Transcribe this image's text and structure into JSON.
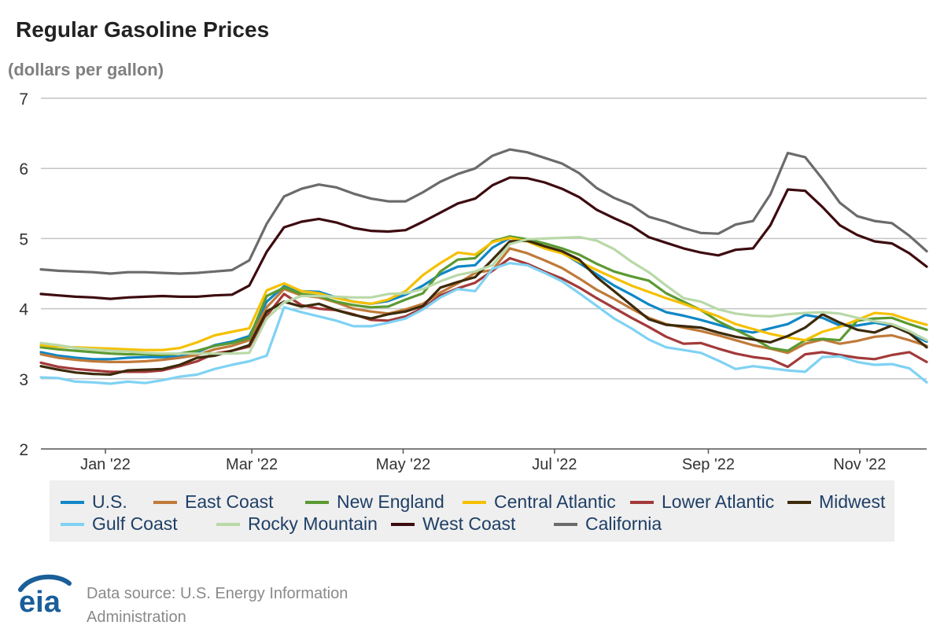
{
  "header": {
    "title": "Regular Gasoline Prices",
    "subtitle": "(dollars per gallon)"
  },
  "footer": {
    "source_line1": "Data source: U.S. Energy Information",
    "source_line2": "Administration",
    "logo_text": "eia",
    "logo_color": "#1a5f99"
  },
  "chart_data": {
    "type": "line",
    "title": "Regular Gasoline Prices",
    "ylabel": "(dollars per gallon)",
    "ylim": [
      2,
      7
    ],
    "yticks": [
      2,
      3,
      4,
      5,
      6,
      7
    ],
    "xlim": [
      "2021-12-06",
      "2022-11-28"
    ],
    "xticks": [
      {
        "label": "Jan '22",
        "date": "2022-01-01"
      },
      {
        "label": "Mar '22",
        "date": "2022-03-01"
      },
      {
        "label": "May '22",
        "date": "2022-05-01"
      },
      {
        "label": "Jul '22",
        "date": "2022-07-01"
      },
      {
        "label": "Sep '22",
        "date": "2022-09-01"
      },
      {
        "label": "Nov '22",
        "date": "2022-11-01"
      }
    ],
    "grid": true,
    "legend_position": "bottom",
    "x": [
      "2021-12-06",
      "2021-12-13",
      "2021-12-20",
      "2021-12-27",
      "2022-01-03",
      "2022-01-10",
      "2022-01-17",
      "2022-01-24",
      "2022-01-31",
      "2022-02-07",
      "2022-02-14",
      "2022-02-21",
      "2022-02-28",
      "2022-03-07",
      "2022-03-14",
      "2022-03-21",
      "2022-03-28",
      "2022-04-04",
      "2022-04-11",
      "2022-04-18",
      "2022-04-25",
      "2022-05-02",
      "2022-05-09",
      "2022-05-16",
      "2022-05-23",
      "2022-05-30",
      "2022-06-06",
      "2022-06-13",
      "2022-06-20",
      "2022-06-27",
      "2022-07-04",
      "2022-07-11",
      "2022-07-18",
      "2022-07-25",
      "2022-08-01",
      "2022-08-08",
      "2022-08-15",
      "2022-08-22",
      "2022-08-29",
      "2022-09-05",
      "2022-09-12",
      "2022-09-19",
      "2022-09-26",
      "2022-10-03",
      "2022-10-10",
      "2022-10-17",
      "2022-10-24",
      "2022-10-31",
      "2022-11-07",
      "2022-11-14",
      "2022-11-21",
      "2022-11-28"
    ],
    "series": [
      {
        "name": "U.S.",
        "color": "#0f87c6",
        "values": [
          3.38,
          3.33,
          3.3,
          3.28,
          3.28,
          3.3,
          3.31,
          3.31,
          3.32,
          3.38,
          3.48,
          3.53,
          3.61,
          4.1,
          4.32,
          4.25,
          4.24,
          4.16,
          4.1,
          4.07,
          4.11,
          4.2,
          4.33,
          4.49,
          4.6,
          4.62,
          4.87,
          5.01,
          4.98,
          4.88,
          4.8,
          4.65,
          4.49,
          4.33,
          4.2,
          4.06,
          3.95,
          3.9,
          3.84,
          3.77,
          3.7,
          3.66,
          3.72,
          3.78,
          3.91,
          3.87,
          3.76,
          3.76,
          3.8,
          3.76,
          3.65,
          3.53
        ]
      },
      {
        "name": "East Coast",
        "color": "#c07a3a",
        "values": [
          3.35,
          3.3,
          3.27,
          3.25,
          3.24,
          3.24,
          3.25,
          3.27,
          3.3,
          3.34,
          3.42,
          3.47,
          3.55,
          4.02,
          4.28,
          4.19,
          4.16,
          4.09,
          4.0,
          3.96,
          3.93,
          3.99,
          4.07,
          4.23,
          4.36,
          4.51,
          4.55,
          4.86,
          4.79,
          4.69,
          4.58,
          4.43,
          4.27,
          4.14,
          4.0,
          3.87,
          3.78,
          3.73,
          3.68,
          3.62,
          3.55,
          3.48,
          3.43,
          3.37,
          3.5,
          3.56,
          3.5,
          3.54,
          3.6,
          3.62,
          3.55,
          3.47
        ]
      },
      {
        "name": "New England",
        "color": "#5b9a32",
        "values": [
          3.45,
          3.42,
          3.4,
          3.38,
          3.36,
          3.35,
          3.35,
          3.34,
          3.36,
          3.4,
          3.47,
          3.51,
          3.58,
          4.18,
          4.3,
          4.21,
          4.18,
          4.1,
          4.05,
          4.02,
          4.03,
          4.13,
          4.22,
          4.53,
          4.7,
          4.72,
          4.96,
          5.03,
          4.99,
          4.93,
          4.86,
          4.77,
          4.64,
          4.53,
          4.46,
          4.4,
          4.22,
          4.1,
          3.98,
          3.82,
          3.7,
          3.58,
          3.44,
          3.4,
          3.55,
          3.57,
          3.55,
          3.83,
          3.86,
          3.87,
          3.78,
          3.7
        ]
      },
      {
        "name": "Central Atlantic",
        "color": "#f5c000",
        "values": [
          3.48,
          3.46,
          3.45,
          3.44,
          3.43,
          3.42,
          3.41,
          3.41,
          3.44,
          3.52,
          3.62,
          3.67,
          3.72,
          4.26,
          4.36,
          4.25,
          4.22,
          4.15,
          4.1,
          4.07,
          4.13,
          4.25,
          4.48,
          4.65,
          4.8,
          4.77,
          4.95,
          5.01,
          4.96,
          4.86,
          4.79,
          4.67,
          4.55,
          4.44,
          4.33,
          4.24,
          4.15,
          4.07,
          3.98,
          3.89,
          3.78,
          3.71,
          3.64,
          3.59,
          3.55,
          3.67,
          3.74,
          3.84,
          3.94,
          3.92,
          3.84,
          3.77
        ]
      },
      {
        "name": "Lower Atlantic",
        "color": "#a33a3a",
        "values": [
          3.23,
          3.17,
          3.14,
          3.12,
          3.1,
          3.1,
          3.1,
          3.12,
          3.18,
          3.25,
          3.36,
          3.4,
          3.46,
          3.9,
          4.21,
          4.05,
          4.0,
          3.98,
          3.92,
          3.84,
          3.83,
          3.89,
          4.01,
          4.19,
          4.29,
          4.37,
          4.54,
          4.72,
          4.64,
          4.53,
          4.43,
          4.3,
          4.15,
          4.01,
          3.87,
          3.74,
          3.6,
          3.5,
          3.51,
          3.43,
          3.36,
          3.31,
          3.28,
          3.17,
          3.35,
          3.38,
          3.34,
          3.3,
          3.28,
          3.34,
          3.38,
          3.24
        ]
      },
      {
        "name": "Midwest",
        "color": "#3c2a0a",
        "values": [
          3.18,
          3.13,
          3.09,
          3.07,
          3.06,
          3.12,
          3.13,
          3.14,
          3.2,
          3.3,
          3.33,
          3.4,
          3.48,
          3.96,
          4.1,
          4.03,
          4.07,
          3.98,
          3.91,
          3.86,
          3.92,
          3.96,
          4.04,
          4.3,
          4.38,
          4.45,
          4.7,
          4.96,
          4.97,
          4.89,
          4.82,
          4.7,
          4.45,
          4.25,
          4.05,
          3.85,
          3.77,
          3.75,
          3.73,
          3.66,
          3.6,
          3.56,
          3.52,
          3.61,
          3.73,
          3.92,
          3.8,
          3.7,
          3.66,
          3.76,
          3.65,
          3.45
        ]
      },
      {
        "name": "Gulf Coast",
        "color": "#7fd2f3",
        "values": [
          3.02,
          3.01,
          2.96,
          2.95,
          2.93,
          2.96,
          2.94,
          2.98,
          3.03,
          3.06,
          3.14,
          3.2,
          3.25,
          3.33,
          4.02,
          3.95,
          3.89,
          3.83,
          3.75,
          3.75,
          3.8,
          3.86,
          3.99,
          4.16,
          4.28,
          4.25,
          4.57,
          4.65,
          4.62,
          4.51,
          4.39,
          4.22,
          4.04,
          3.86,
          3.72,
          3.56,
          3.45,
          3.41,
          3.37,
          3.26,
          3.14,
          3.18,
          3.15,
          3.12,
          3.1,
          3.31,
          3.32,
          3.24,
          3.2,
          3.21,
          3.15,
          2.95
        ]
      },
      {
        "name": "Rocky Mountain",
        "color": "#b9d9a8",
        "values": [
          3.51,
          3.48,
          3.44,
          3.42,
          3.4,
          3.39,
          3.37,
          3.36,
          3.36,
          3.36,
          3.36,
          3.36,
          3.37,
          3.86,
          4.09,
          4.18,
          4.18,
          4.17,
          4.16,
          4.16,
          4.21,
          4.22,
          4.28,
          4.39,
          4.48,
          4.53,
          4.62,
          4.92,
          4.99,
          5.0,
          5.01,
          5.02,
          4.97,
          4.85,
          4.67,
          4.52,
          4.33,
          4.15,
          4.1,
          3.99,
          3.93,
          3.9,
          3.89,
          3.92,
          3.94,
          3.95,
          3.93,
          3.87,
          3.82,
          3.78,
          3.68,
          3.55
        ]
      },
      {
        "name": "West Coast",
        "color": "#3d0b0f",
        "values": [
          4.21,
          4.19,
          4.17,
          4.16,
          4.14,
          4.16,
          4.17,
          4.18,
          4.17,
          4.17,
          4.19,
          4.2,
          4.33,
          4.81,
          5.16,
          5.24,
          5.28,
          5.23,
          5.15,
          5.11,
          5.1,
          5.12,
          5.24,
          5.37,
          5.5,
          5.57,
          5.76,
          5.87,
          5.86,
          5.8,
          5.71,
          5.59,
          5.41,
          5.29,
          5.18,
          5.02,
          4.94,
          4.86,
          4.8,
          4.76,
          4.84,
          4.86,
          5.19,
          5.7,
          5.68,
          5.45,
          5.19,
          5.05,
          4.96,
          4.93,
          4.79,
          4.6
        ]
      },
      {
        "name": "California",
        "color": "#6b6b6b",
        "values": [
          4.56,
          4.54,
          4.53,
          4.52,
          4.5,
          4.52,
          4.52,
          4.51,
          4.5,
          4.51,
          4.53,
          4.55,
          4.69,
          5.21,
          5.6,
          5.71,
          5.77,
          5.73,
          5.64,
          5.57,
          5.53,
          5.53,
          5.66,
          5.81,
          5.92,
          6.0,
          6.18,
          6.27,
          6.23,
          6.15,
          6.07,
          5.93,
          5.72,
          5.58,
          5.48,
          5.31,
          5.24,
          5.15,
          5.08,
          5.07,
          5.2,
          5.25,
          5.63,
          6.22,
          6.16,
          5.85,
          5.51,
          5.32,
          5.25,
          5.22,
          5.04,
          4.82
        ]
      }
    ]
  }
}
